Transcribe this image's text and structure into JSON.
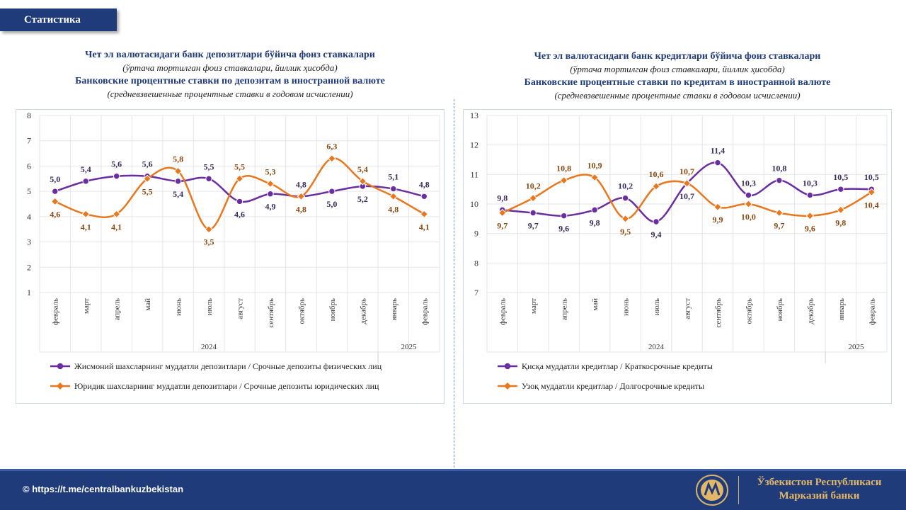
{
  "header": {
    "tag": "Статистика"
  },
  "left": {
    "title_uz": "Чет эл валютасидаги банк депозитлари бўйича фоиз ставкалари",
    "subtitle_uz": "(ўртача тортилган фоиз ставкалари, йиллик ҳисобда)",
    "title_ru": "Банковские процентные ставки по депозитам в иностранной валюте",
    "subtitle_ru": "(средневзвешенные процентные ставки в годовом исчислении)"
  },
  "right": {
    "title_uz": "Чет эл валютасидаги банк кредитлари бўйича фоиз ставкалари",
    "subtitle_uz": "(ўртача тортилган фоиз ставкалари, йиллик ҳисобда)",
    "title_ru": "Банковские процентные ставки по кредитам в иностранной валюте",
    "subtitle_ru": "(средневзвешенные процентные ставки в годовом исчислении)"
  },
  "chart_data": [
    {
      "type": "line",
      "categories": [
        "февраль",
        "март",
        "апрель",
        "май",
        "июнь",
        "июль",
        "август",
        "сентябрь",
        "октябрь",
        "ноябрь",
        "декабрь",
        "январь",
        "февраль"
      ],
      "year_groups": [
        {
          "label": "2024",
          "count": 11
        },
        {
          "label": "2025",
          "count": 2
        }
      ],
      "ylim": [
        1,
        8
      ],
      "yticks": [
        1,
        2,
        3,
        4,
        5,
        6,
        7,
        8
      ],
      "grid": true,
      "legend_position": "bottom",
      "series": [
        {
          "name": "Жисмоний шахсларнинг муддатли депозитлари / Срочные депозиты физических лиц",
          "color": "#6a2ea0",
          "values": [
            5.0,
            5.4,
            5.6,
            5.6,
            5.4,
            5.5,
            4.6,
            4.9,
            4.8,
            5.0,
            5.2,
            5.1,
            4.8
          ],
          "labels": [
            "5,0",
            "5,4",
            "5,6",
            "5,6",
            "5,4",
            "5,5",
            "4,6",
            "4,9",
            "4,8",
            "5,0",
            "5,2",
            "5,1",
            "4,8"
          ]
        },
        {
          "name": "Юридик шахсларнинг муддатли депозитлари / Срочные депозиты юридических лиц",
          "color": "#e8771e",
          "values": [
            4.6,
            4.1,
            4.1,
            5.5,
            5.8,
            3.5,
            5.5,
            5.3,
            4.8,
            6.3,
            5.4,
            4.8,
            4.1
          ],
          "labels": [
            "4,6",
            "4,1",
            "4,1",
            "5,5",
            "5,8",
            "3,5",
            "5,5",
            "5,3",
            "4,8",
            "6,3",
            "5,4",
            "4,8",
            "4,1"
          ]
        }
      ]
    },
    {
      "type": "line",
      "categories": [
        "февраль",
        "март",
        "апрель",
        "май",
        "июнь",
        "июль",
        "август",
        "сентябрь",
        "октябрь",
        "ноябрь",
        "декабрь",
        "январь",
        "февраль"
      ],
      "year_groups": [
        {
          "label": "2024",
          "count": 11
        },
        {
          "label": "2025",
          "count": 2
        }
      ],
      "ylim": [
        7,
        13
      ],
      "yticks": [
        7,
        8,
        9,
        10,
        11,
        12,
        13
      ],
      "grid": true,
      "legend_position": "bottom",
      "series": [
        {
          "name": "Қисқа муддатли кредитлар / Краткосрочные кредиты",
          "color": "#6a2ea0",
          "values": [
            9.8,
            9.7,
            9.6,
            9.8,
            10.2,
            9.4,
            10.7,
            11.4,
            10.3,
            10.8,
            10.3,
            10.5,
            10.5
          ],
          "labels": [
            "9,8",
            "9,7",
            "9,6",
            "9,8",
            "10,2",
            "9,4",
            "10,7",
            "11,4",
            "10,3",
            "10,8",
            "10,3",
            "10,5",
            "10,5"
          ]
        },
        {
          "name": "Узоқ муддатли кредитлар / Долгосрочные кредиты",
          "color": "#e8771e",
          "values": [
            9.7,
            10.2,
            10.8,
            10.9,
            9.5,
            10.6,
            10.7,
            9.9,
            10.0,
            9.7,
            9.6,
            9.8,
            10.4
          ],
          "labels": [
            "9,7",
            "10,2",
            "10,8",
            "10,9",
            "9,5",
            "10,6",
            "10,7",
            "9,9",
            "10,0",
            "9,7",
            "9,6",
            "9,8",
            "10,4"
          ]
        }
      ]
    }
  ],
  "footer": {
    "link": "© https://t.me/centralbankuzbekistan",
    "bank_line1": "Ўзбекистон Республикаси",
    "bank_line2": "Марказий банки"
  }
}
